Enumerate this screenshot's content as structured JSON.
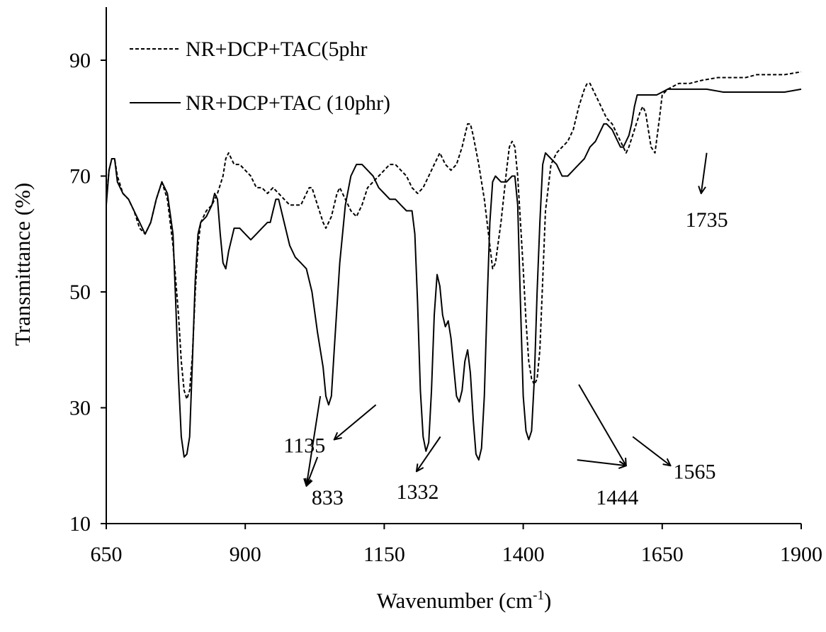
{
  "chart_data": {
    "type": "line",
    "xlabel": "Wavenumber (cm",
    "xlabel_sup": "-1",
    "xlabel_end": ")",
    "ylabel": "Transmittance (%)",
    "xlim": [
      650,
      1900
    ],
    "ylim": [
      10,
      100
    ],
    "x_ticks": [
      650,
      900,
      1150,
      1400,
      1650,
      1900
    ],
    "x_tick_labels": [
      "650",
      "900",
      "1150",
      "1400",
      "1650",
      "1900"
    ],
    "y_ticks": [
      10,
      30,
      50,
      70,
      90
    ],
    "y_tick_labels": [
      "10",
      "30",
      "50",
      "70",
      "90"
    ],
    "grid": false,
    "legend_position": "top-left",
    "series": [
      {
        "name": "NR+DCP+TAC(5phr",
        "style": "dashed",
        "color": "#000000",
        "points": [
          [
            650,
            66
          ],
          [
            655,
            71
          ],
          [
            660,
            73
          ],
          [
            665,
            73
          ],
          [
            670,
            70
          ],
          [
            680,
            67
          ],
          [
            690,
            66
          ],
          [
            700,
            64
          ],
          [
            710,
            61
          ],
          [
            720,
            60
          ],
          [
            730,
            62
          ],
          [
            740,
            66
          ],
          [
            750,
            69
          ],
          [
            760,
            66
          ],
          [
            770,
            58
          ],
          [
            780,
            46
          ],
          [
            785,
            38
          ],
          [
            790,
            33
          ],
          [
            795,
            31.5
          ],
          [
            800,
            33
          ],
          [
            805,
            39
          ],
          [
            810,
            50
          ],
          [
            815,
            58
          ],
          [
            820,
            62
          ],
          [
            830,
            64
          ],
          [
            840,
            65
          ],
          [
            850,
            67
          ],
          [
            860,
            70
          ],
          [
            865,
            73
          ],
          [
            870,
            74
          ],
          [
            875,
            73
          ],
          [
            880,
            72
          ],
          [
            890,
            72
          ],
          [
            900,
            71
          ],
          [
            910,
            70
          ],
          [
            920,
            68
          ],
          [
            930,
            68
          ],
          [
            940,
            67
          ],
          [
            950,
            68
          ],
          [
            960,
            67
          ],
          [
            970,
            66
          ],
          [
            980,
            65
          ],
          [
            990,
            65
          ],
          [
            1000,
            65
          ],
          [
            1010,
            67
          ],
          [
            1015,
            68
          ],
          [
            1020,
            68
          ],
          [
            1030,
            65
          ],
          [
            1040,
            62
          ],
          [
            1045,
            61
          ],
          [
            1055,
            63
          ],
          [
            1065,
            67
          ],
          [
            1070,
            68
          ],
          [
            1080,
            66
          ],
          [
            1090,
            64
          ],
          [
            1100,
            63
          ],
          [
            1110,
            65
          ],
          [
            1120,
            68
          ],
          [
            1130,
            69
          ],
          [
            1140,
            70
          ],
          [
            1150,
            71
          ],
          [
            1160,
            72
          ],
          [
            1170,
            72
          ],
          [
            1180,
            71
          ],
          [
            1190,
            70
          ],
          [
            1200,
            68
          ],
          [
            1210,
            67
          ],
          [
            1220,
            68
          ],
          [
            1230,
            70
          ],
          [
            1240,
            72
          ],
          [
            1250,
            74
          ],
          [
            1260,
            72
          ],
          [
            1270,
            71
          ],
          [
            1280,
            72
          ],
          [
            1290,
            75
          ],
          [
            1300,
            79
          ],
          [
            1305,
            79
          ],
          [
            1310,
            77
          ],
          [
            1320,
            72
          ],
          [
            1330,
            66
          ],
          [
            1340,
            58
          ],
          [
            1345,
            54
          ],
          [
            1350,
            55
          ],
          [
            1360,
            62
          ],
          [
            1370,
            71
          ],
          [
            1375,
            75
          ],
          [
            1380,
            76
          ],
          [
            1385,
            75
          ],
          [
            1390,
            70
          ],
          [
            1395,
            62
          ],
          [
            1400,
            54
          ],
          [
            1405,
            45
          ],
          [
            1410,
            38
          ],
          [
            1415,
            35
          ],
          [
            1420,
            34
          ],
          [
            1425,
            35
          ],
          [
            1430,
            40
          ],
          [
            1435,
            52
          ],
          [
            1440,
            64
          ],
          [
            1450,
            72
          ],
          [
            1460,
            74
          ],
          [
            1470,
            75
          ],
          [
            1480,
            76
          ],
          [
            1490,
            78
          ],
          [
            1500,
            82
          ],
          [
            1510,
            85
          ],
          [
            1515,
            86
          ],
          [
            1520,
            86
          ],
          [
            1530,
            84
          ],
          [
            1540,
            82
          ],
          [
            1550,
            80
          ],
          [
            1560,
            79
          ],
          [
            1570,
            77
          ],
          [
            1580,
            75
          ],
          [
            1585,
            74
          ],
          [
            1590,
            75
          ],
          [
            1600,
            78
          ],
          [
            1610,
            81
          ],
          [
            1615,
            82
          ],
          [
            1620,
            81
          ],
          [
            1625,
            78
          ],
          [
            1630,
            75
          ],
          [
            1637,
            74
          ],
          [
            1645,
            80
          ],
          [
            1650,
            84
          ],
          [
            1660,
            85
          ],
          [
            1680,
            86
          ],
          [
            1700,
            86
          ],
          [
            1720,
            86.5
          ],
          [
            1750,
            87
          ],
          [
            1770,
            87
          ],
          [
            1800,
            87
          ],
          [
            1820,
            87.5
          ],
          [
            1850,
            87.5
          ],
          [
            1870,
            87.5
          ],
          [
            1900,
            88
          ]
        ]
      },
      {
        "name": "NR+DCP+TAC (10phr)",
        "style": "solid",
        "color": "#000000",
        "points": [
          [
            650,
            65
          ],
          [
            655,
            71
          ],
          [
            660,
            73
          ],
          [
            665,
            73
          ],
          [
            670,
            69
          ],
          [
            680,
            67
          ],
          [
            690,
            66
          ],
          [
            700,
            64
          ],
          [
            710,
            62
          ],
          [
            720,
            60
          ],
          [
            730,
            62
          ],
          [
            740,
            66
          ],
          [
            750,
            69
          ],
          [
            760,
            67
          ],
          [
            770,
            60
          ],
          [
            775,
            48
          ],
          [
            780,
            35
          ],
          [
            785,
            25
          ],
          [
            790,
            21.5
          ],
          [
            795,
            22
          ],
          [
            800,
            25
          ],
          [
            805,
            38
          ],
          [
            810,
            52
          ],
          [
            815,
            60
          ],
          [
            820,
            62
          ],
          [
            830,
            63
          ],
          [
            840,
            65
          ],
          [
            845,
            67
          ],
          [
            850,
            66
          ],
          [
            855,
            60
          ],
          [
            860,
            55
          ],
          [
            865,
            54
          ],
          [
            870,
            57
          ],
          [
            880,
            61
          ],
          [
            890,
            61
          ],
          [
            900,
            60
          ],
          [
            910,
            59
          ],
          [
            920,
            60
          ],
          [
            930,
            61
          ],
          [
            940,
            62
          ],
          [
            945,
            62
          ],
          [
            950,
            64
          ],
          [
            955,
            66
          ],
          [
            960,
            66
          ],
          [
            970,
            62
          ],
          [
            980,
            58
          ],
          [
            990,
            56
          ],
          [
            1000,
            55
          ],
          [
            1010,
            54
          ],
          [
            1020,
            50
          ],
          [
            1030,
            43
          ],
          [
            1040,
            37
          ],
          [
            1045,
            32
          ],
          [
            1050,
            30.5
          ],
          [
            1055,
            32
          ],
          [
            1060,
            40
          ],
          [
            1070,
            55
          ],
          [
            1080,
            65
          ],
          [
            1090,
            70
          ],
          [
            1100,
            72
          ],
          [
            1110,
            72
          ],
          [
            1120,
            71
          ],
          [
            1130,
            70
          ],
          [
            1140,
            68
          ],
          [
            1150,
            67
          ],
          [
            1160,
            66
          ],
          [
            1170,
            66
          ],
          [
            1180,
            65
          ],
          [
            1190,
            64
          ],
          [
            1200,
            64
          ],
          [
            1205,
            60
          ],
          [
            1210,
            48
          ],
          [
            1215,
            33
          ],
          [
            1220,
            25
          ],
          [
            1225,
            22.5
          ],
          [
            1230,
            24
          ],
          [
            1235,
            33
          ],
          [
            1240,
            46
          ],
          [
            1245,
            53
          ],
          [
            1250,
            51
          ],
          [
            1255,
            46
          ],
          [
            1260,
            44
          ],
          [
            1265,
            45
          ],
          [
            1270,
            42
          ],
          [
            1275,
            37
          ],
          [
            1280,
            32
          ],
          [
            1285,
            31
          ],
          [
            1290,
            33
          ],
          [
            1295,
            38
          ],
          [
            1300,
            40
          ],
          [
            1305,
            36
          ],
          [
            1310,
            28
          ],
          [
            1315,
            22
          ],
          [
            1320,
            21
          ],
          [
            1325,
            23
          ],
          [
            1330,
            32
          ],
          [
            1335,
            48
          ],
          [
            1340,
            62
          ],
          [
            1345,
            69
          ],
          [
            1350,
            70
          ],
          [
            1360,
            69
          ],
          [
            1370,
            69
          ],
          [
            1380,
            70
          ],
          [
            1385,
            70
          ],
          [
            1390,
            65
          ],
          [
            1395,
            48
          ],
          [
            1400,
            32
          ],
          [
            1405,
            26
          ],
          [
            1410,
            24.5
          ],
          [
            1415,
            26
          ],
          [
            1420,
            35
          ],
          [
            1425,
            50
          ],
          [
            1430,
            62
          ],
          [
            1435,
            72
          ],
          [
            1440,
            74
          ],
          [
            1450,
            73
          ],
          [
            1460,
            72
          ],
          [
            1465,
            71
          ],
          [
            1470,
            70
          ],
          [
            1480,
            70
          ],
          [
            1490,
            71
          ],
          [
            1500,
            72
          ],
          [
            1510,
            73
          ],
          [
            1520,
            75
          ],
          [
            1530,
            76
          ],
          [
            1540,
            78
          ],
          [
            1545,
            79
          ],
          [
            1550,
            79
          ],
          [
            1560,
            78
          ],
          [
            1565,
            77
          ],
          [
            1570,
            76
          ],
          [
            1575,
            75
          ],
          [
            1580,
            75
          ],
          [
            1590,
            77
          ],
          [
            1595,
            79
          ],
          [
            1600,
            82
          ],
          [
            1605,
            84
          ],
          [
            1620,
            84
          ],
          [
            1640,
            84
          ],
          [
            1660,
            85
          ],
          [
            1680,
            85
          ],
          [
            1700,
            85
          ],
          [
            1730,
            85
          ],
          [
            1760,
            84.5
          ],
          [
            1800,
            84.5
          ],
          [
            1830,
            84.5
          ],
          [
            1870,
            84.5
          ],
          [
            1900,
            85
          ]
        ]
      }
    ],
    "annotations": [
      {
        "label": "833",
        "tip": [
          1010,
          16.5
        ],
        "sources": [
          [
            1030,
            21.5
          ],
          [
            1035,
            32
          ]
        ],
        "text_pos": [
          1048,
          14.5
        ],
        "text_anchor": "middle"
      },
      {
        "label": "1135",
        "tip": [
          1060,
          24.5
        ],
        "sources": [
          [
            1135,
            30.5
          ]
        ],
        "text_pos": [
          1044,
          23.5
        ],
        "text_anchor": "end"
      },
      {
        "label": "1332",
        "tip": [
          1208,
          19
        ],
        "sources": [
          [
            1251,
            25
          ]
        ],
        "text_pos": [
          1210,
          15.5
        ],
        "text_anchor": "middle"
      },
      {
        "label": "1444",
        "tip": [
          1585,
          20
        ],
        "sources": [
          [
            1500,
            34
          ],
          [
            1497,
            21
          ]
        ],
        "text_pos": [
          1569,
          14.5
        ],
        "text_anchor": "middle"
      },
      {
        "label": "1565",
        "tip": [
          1665,
          20
        ],
        "sources": [
          [
            1597,
            25
          ]
        ],
        "text_pos": [
          1670,
          19
        ],
        "text_anchor": "start"
      },
      {
        "label": "1735",
        "tip": [
          1720,
          67
        ],
        "sources": [
          [
            1730,
            74
          ]
        ],
        "text_pos": [
          1730,
          62.5
        ],
        "text_anchor": "middle"
      }
    ]
  }
}
